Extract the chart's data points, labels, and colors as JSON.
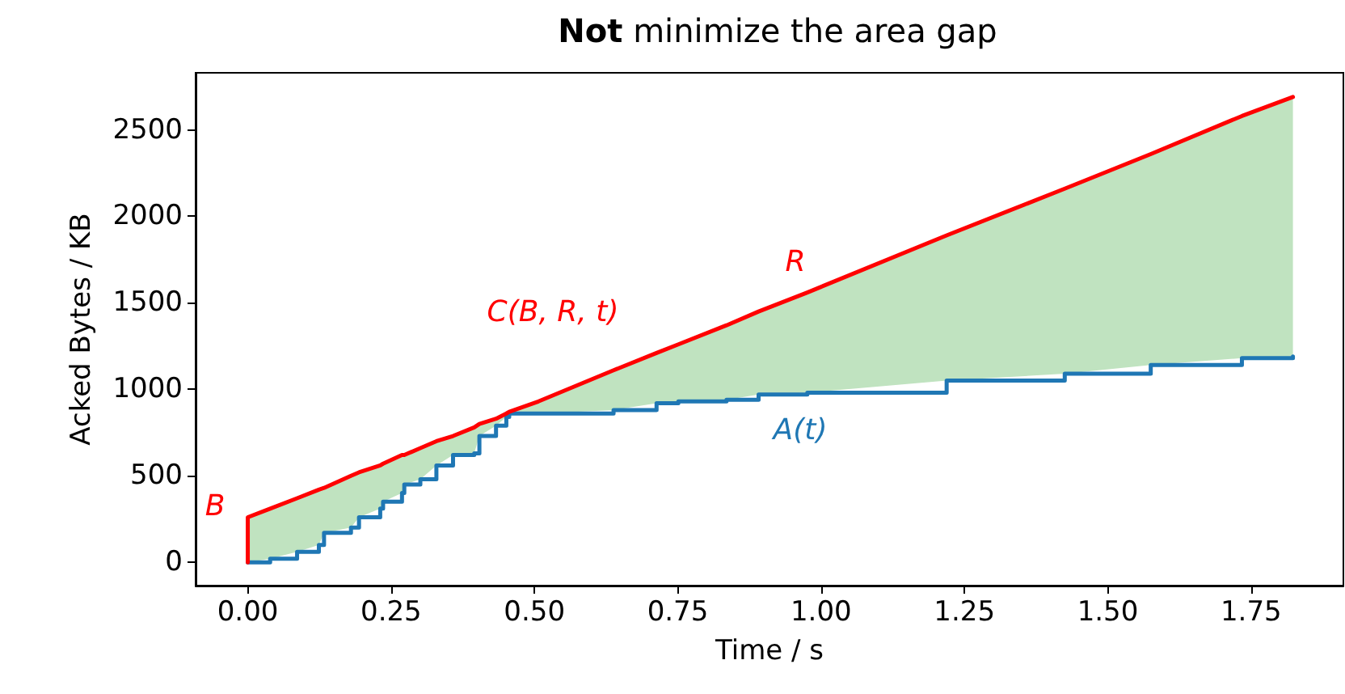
{
  "chart_data": {
    "type": "line",
    "title": "Not minimize the area gap",
    "xlabel": "Time / s",
    "ylabel": "Acked Bytes / KB",
    "xlim": [
      -0.091,
      1.911
    ],
    "ylim": [
      -135,
      2830
    ],
    "xticks": [
      {
        "value": 0,
        "label": "0.00"
      },
      {
        "value": 0.25,
        "label": "0.25"
      },
      {
        "value": 0.5,
        "label": "0.50"
      },
      {
        "value": 0.75,
        "label": "0.75"
      },
      {
        "value": 1,
        "label": "1.00"
      },
      {
        "value": 1.25,
        "label": "1.25"
      },
      {
        "value": 1.5,
        "label": "1.50"
      },
      {
        "value": 1.75,
        "label": "1.75"
      }
    ],
    "yticks": [
      0,
      500,
      1000,
      1500,
      2000,
      2500
    ],
    "grid": false,
    "marker": "none",
    "line_style": "solid",
    "series": [
      {
        "type": "step",
        "color": "#1f77b4",
        "x": [
          0,
          0.039,
          0.086,
          0.124,
          0.133,
          0.18,
          0.194,
          0.231,
          0.236,
          0.269,
          0.273,
          0.301,
          0.329,
          0.358,
          0.395,
          0.404,
          0.433,
          0.451,
          0.456,
          0.507,
          0.638,
          0.713,
          0.751,
          0.835,
          0.891,
          0.976,
          1.219,
          1.425,
          1.575,
          1.734,
          1.823
        ],
        "values": [
          0,
          20,
          60,
          100,
          170,
          200,
          260,
          310,
          350,
          400,
          450,
          480,
          560,
          620,
          630,
          730,
          790,
          840,
          860,
          860,
          880,
          920,
          930,
          940,
          970,
          980,
          1050,
          1090,
          1140,
          1180,
          1190
        ]
      },
      {
        "color": "#ff0000",
        "x": [
          0,
          0,
          0.039,
          0.086,
          0.124,
          0.133,
          0.18,
          0.194,
          0.231,
          0.236,
          0.269,
          0.273,
          0.301,
          0.329,
          0.358,
          0.395,
          0.404,
          0.433,
          0.451,
          0.456,
          0.507,
          0.638,
          0.713,
          0.751,
          0.835,
          0.891,
          0.976,
          1.219,
          1.425,
          1.575,
          1.734,
          1.823
        ],
        "values": [
          0,
          260,
          310,
          370,
          420,
          430,
          500,
          520,
          560,
          570,
          620,
          620,
          660,
          700,
          730,
          780,
          800,
          830,
          860,
          870,
          930,
          1110,
          1210,
          1260,
          1370,
          1450,
          1560,
          1890,
          2160,
          2360,
          2580,
          2690
        ],
        "lower": [
          0,
          0,
          20,
          60,
          100,
          170,
          200,
          260,
          310,
          350,
          400,
          450,
          480,
          560,
          620,
          630,
          730,
          790,
          840,
          860,
          860,
          880,
          920,
          930,
          940,
          970,
          980,
          1050,
          1090,
          1140,
          1180,
          1190
        ],
        "upper": [
          0,
          260,
          310,
          370,
          420,
          430,
          500,
          520,
          560,
          570,
          620,
          620,
          660,
          700,
          730,
          780,
          800,
          830,
          860,
          870,
          930,
          1110,
          1210,
          1260,
          1370,
          1450,
          1560,
          1890,
          2160,
          2360,
          2580,
          2690
        ]
      }
    ],
    "annotations": [
      "B",
      "C(B, R, t)",
      "R",
      "A(t)"
    ]
  }
}
